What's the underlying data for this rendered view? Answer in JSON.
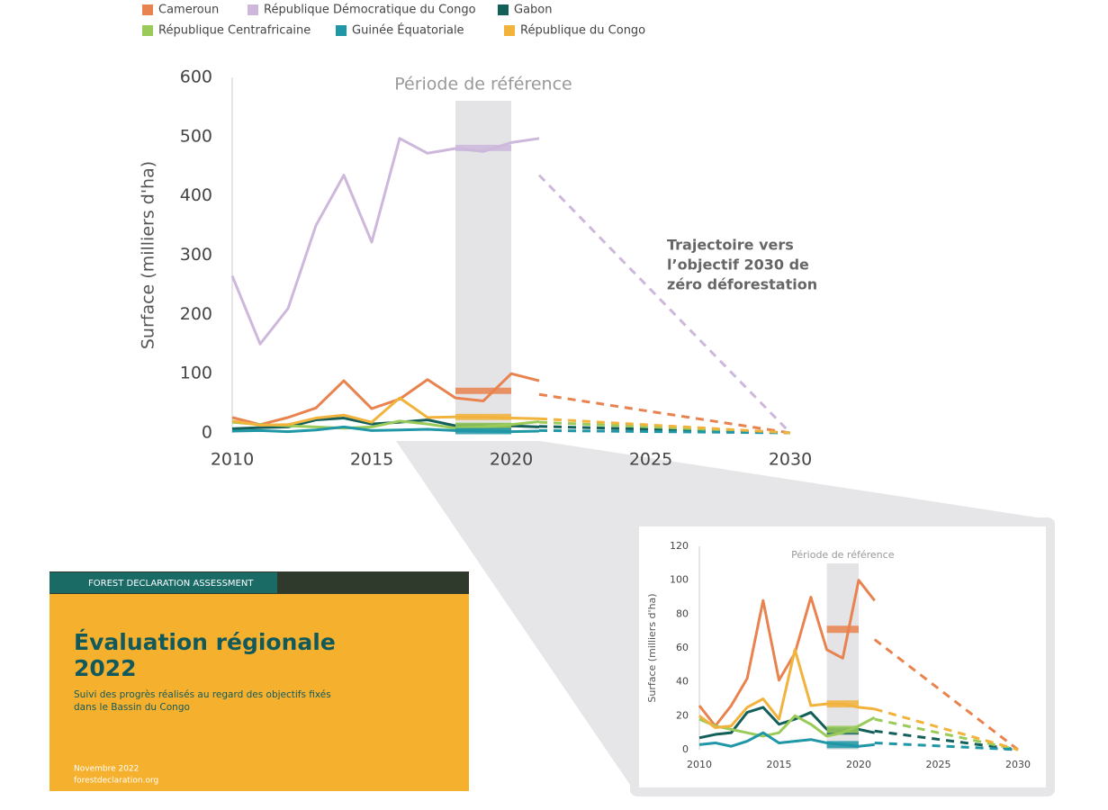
{
  "chart_data": [
    {
      "type": "line",
      "band_label": "Période de référence",
      "y_label": "Surface (milliers d'ha)",
      "annotation": [
        "Trajectoire vers",
        "l’objectif 2030 de",
        "zéro déforestation"
      ],
      "legend": true,
      "x": [
        2010,
        2011,
        2012,
        2013,
        2014,
        2015,
        2016,
        2017,
        2018,
        2019,
        2020,
        2021
      ],
      "reference_period": [
        2018,
        2020
      ],
      "trajectory_x": [
        2021,
        2030
      ],
      "xlim": [
        2010,
        2030
      ],
      "xticks": [
        2010,
        2015,
        2020,
        2025,
        2030
      ],
      "ylim": [
        0,
        600
      ],
      "yticks": [
        0,
        100,
        200,
        300,
        400,
        500,
        600
      ],
      "series": [
        {
          "name": "Cameroun",
          "color": "#e8834f",
          "values": [
            26,
            14,
            26,
            42,
            88,
            41,
            57,
            90,
            59,
            54,
            100,
            88
          ],
          "reference": 71,
          "trajectory": [
            65,
            0
          ]
        },
        {
          "name": "République Démocratique du Congo",
          "color": "#cdb8dc",
          "values": [
            265,
            150,
            210,
            350,
            435,
            322,
            497,
            472,
            480,
            475,
            490,
            497
          ],
          "reference": 481,
          "trajectory": [
            435,
            0
          ]
        },
        {
          "name": "Gabon",
          "color": "#135f5a",
          "values": [
            7,
            9,
            10,
            22,
            25,
            15,
            18,
            22,
            12,
            11,
            12,
            10
          ],
          "reference": 11,
          "trajectory": [
            11,
            0
          ]
        },
        {
          "name": "République Centrafricaine",
          "color": "#9acb5a",
          "values": [
            18,
            14,
            12,
            10,
            8,
            10,
            20,
            15,
            8,
            10,
            14,
            19
          ],
          "reference": 12,
          "trajectory": [
            18,
            0
          ]
        },
        {
          "name": "Guinée Équatoriale",
          "color": "#1f97a6",
          "values": [
            3,
            4,
            2,
            5,
            10,
            4,
            5,
            6,
            4,
            3,
            2,
            3
          ],
          "reference": 3,
          "trajectory": [
            4,
            0
          ]
        },
        {
          "name": "République du Congo",
          "color": "#f2b33d",
          "values": [
            20,
            13,
            14,
            25,
            30,
            18,
            59,
            26,
            27,
            27,
            25,
            24
          ],
          "reference": 27,
          "trajectory": [
            24,
            0
          ]
        }
      ]
    },
    {
      "type": "line",
      "band_label": "Période de référence",
      "y_label": "Surface (milliers d'ha)",
      "x": [
        2010,
        2011,
        2012,
        2013,
        2014,
        2015,
        2016,
        2017,
        2018,
        2019,
        2020,
        2021
      ],
      "reference_period": [
        2018,
        2020
      ],
      "trajectory_x": [
        2021,
        2030
      ],
      "xlim": [
        2010,
        2030
      ],
      "xticks": [
        2010,
        2015,
        2020,
        2025,
        2030
      ],
      "ylim": [
        0,
        120
      ],
      "yticks": [
        0,
        20,
        40,
        60,
        80,
        100,
        120
      ],
      "series": [
        {
          "name": "Cameroun",
          "color": "#e8834f",
          "values": [
            26,
            14,
            26,
            42,
            88,
            41,
            57,
            90,
            59,
            54,
            100,
            88
          ],
          "reference": 71,
          "trajectory": [
            65,
            0
          ]
        },
        {
          "name": "Gabon",
          "color": "#135f5a",
          "values": [
            7,
            9,
            10,
            22,
            25,
            15,
            18,
            22,
            12,
            11,
            12,
            10
          ],
          "reference": 11,
          "trajectory": [
            11,
            0
          ]
        },
        {
          "name": "République Centrafricaine",
          "color": "#9acb5a",
          "values": [
            18,
            14,
            12,
            10,
            8,
            10,
            20,
            15,
            8,
            10,
            14,
            19
          ],
          "reference": 12,
          "trajectory": [
            18,
            0
          ]
        },
        {
          "name": "Guinée Équatoriale",
          "color": "#1f97a6",
          "values": [
            3,
            4,
            2,
            5,
            10,
            4,
            5,
            6,
            4,
            3,
            2,
            3
          ],
          "reference": 3,
          "trajectory": [
            4,
            0
          ]
        },
        {
          "name": "République du Congo",
          "color": "#f2b33d",
          "values": [
            20,
            13,
            14,
            25,
            30,
            18,
            59,
            26,
            27,
            27,
            25,
            24
          ],
          "reference": 27,
          "trajectory": [
            24,
            0
          ]
        }
      ]
    }
  ],
  "cover": {
    "banner": "FOREST DECLARATION ASSESSMENT",
    "title": [
      "Évaluation régionale",
      "2022"
    ],
    "subtitle": [
      "Suivi des progrès réalisés au regard des objectifs fixés",
      "dans le Bassin du Congo"
    ],
    "date": "Novembre 2022",
    "website": "forestdeclaration.org"
  }
}
